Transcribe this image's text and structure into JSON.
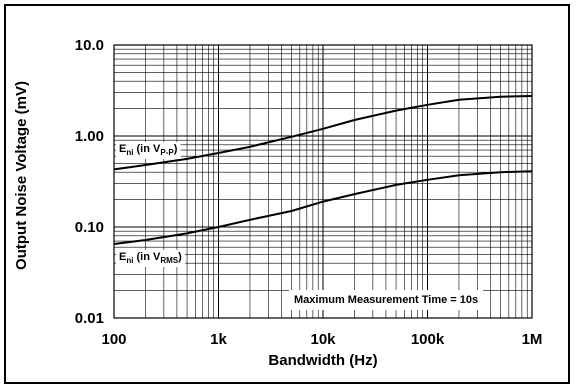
{
  "chart_data": {
    "type": "line",
    "title": "",
    "xlabel": "Bandwidth (Hz)",
    "ylabel": "Output Noise Voltage (mV)",
    "xscale": "log",
    "yscale": "log",
    "xlim": [
      100,
      1000000
    ],
    "ylim": [
      0.01,
      10
    ],
    "grid": true,
    "x_tick_labels": [
      "100",
      "1k",
      "10k",
      "100k",
      "1M"
    ],
    "y_tick_labels": [
      "10.0",
      "1.00",
      "0.10",
      "0.01"
    ],
    "x_tick_values": [
      100,
      1000,
      10000,
      100000,
      1000000
    ],
    "y_tick_values": [
      10,
      1,
      0.1,
      0.01
    ],
    "series": [
      {
        "name": "E_ni (in V_P-P)",
        "label_main": "E",
        "label_sub1": "ni",
        "label_mid": " (in V",
        "label_sub2": "P-P",
        "label_end": ")",
        "x": [
          100,
          200,
          500,
          1000,
          2000,
          5000,
          10000,
          20000,
          50000,
          100000,
          200000,
          500000,
          1000000
        ],
        "y": [
          0.43,
          0.48,
          0.56,
          0.65,
          0.76,
          0.98,
          1.2,
          1.5,
          1.9,
          2.2,
          2.5,
          2.7,
          2.75
        ]
      },
      {
        "name": "E_ni (in V_RMS)",
        "label_main": "E",
        "label_sub1": "ni",
        "label_mid": " (in V",
        "label_sub2": "RMS",
        "label_end": ")",
        "x": [
          100,
          200,
          500,
          1000,
          2000,
          5000,
          10000,
          20000,
          50000,
          100000,
          200000,
          500000,
          1000000
        ],
        "y": [
          0.065,
          0.072,
          0.085,
          0.1,
          0.12,
          0.15,
          0.19,
          0.23,
          0.29,
          0.33,
          0.37,
          0.4,
          0.41
        ]
      }
    ],
    "annotations": [
      "Maximum Measurement Time = 10s"
    ]
  }
}
